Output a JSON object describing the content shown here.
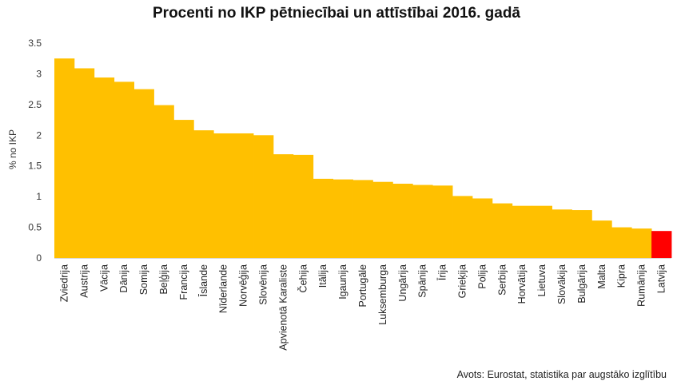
{
  "chart_data": {
    "type": "bar",
    "title": "Procenti no IKP pētniecībai un attīstībai 2016. gadā",
    "ylabel": "% no IKP",
    "xlabel": "",
    "ylim": [
      0,
      3.5
    ],
    "yticks": [
      "0",
      "0.5",
      "1",
      "1.5",
      "2",
      "2.5",
      "3",
      "3.5"
    ],
    "grid": false,
    "categories": [
      "Zviedrija",
      "Austrija",
      "Vācija",
      "Dānija",
      "Somija",
      "Beļģija",
      "Francija",
      "Īslande",
      "Nīderlande",
      "Norvēģija",
      "Slovēnija",
      "Apvienotā Karaliste",
      "Čehija",
      "Itālija",
      "Igaunija",
      "Portugāle",
      "Luksemburga",
      "Ungārija",
      "Spānija",
      "Īrija",
      "Grieķija",
      "Polija",
      "Serbija",
      "Horvātija",
      "Lietuva",
      "Slovākija",
      "Bulgārija",
      "Malta",
      "Kipra",
      "Rumānija",
      "Latvija"
    ],
    "values": [
      3.25,
      3.09,
      2.94,
      2.87,
      2.75,
      2.49,
      2.25,
      2.08,
      2.03,
      2.03,
      2.0,
      1.69,
      1.68,
      1.29,
      1.28,
      1.27,
      1.24,
      1.21,
      1.19,
      1.18,
      1.01,
      0.97,
      0.89,
      0.85,
      0.85,
      0.79,
      0.78,
      0.61,
      0.5,
      0.48,
      0.44
    ],
    "colors": {
      "default": "#FFC000",
      "highlight": "#FF0000"
    },
    "highlight_category": "Latvija"
  },
  "source_note": "Avots: Eurostat, statistika par augstāko izglītību"
}
